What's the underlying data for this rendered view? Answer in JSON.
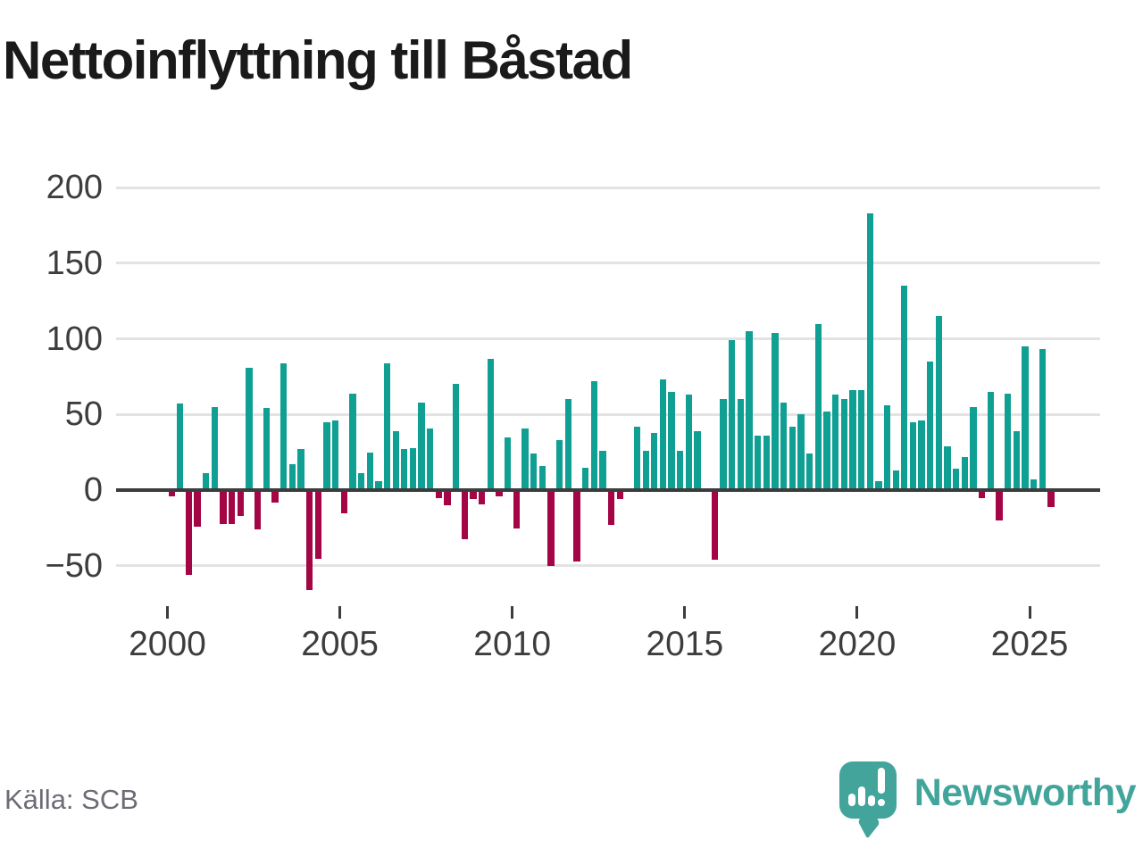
{
  "title": "Nettoinflyttning till Båstad",
  "source": "Källa: SCB",
  "logo": {
    "brand": "Newsworthy"
  },
  "colors": {
    "positive": "#10A093",
    "negative": "#A30545",
    "axis": "#3C3C3C",
    "grid": "#E3E3E3",
    "tick_label": "#3D3D3D",
    "source_text": "#6C6C76",
    "logo_teal": "#43A49C",
    "title_text": "#1A1A1A"
  },
  "chart_data": {
    "type": "bar",
    "title": "Nettoinflyttning till Båstad",
    "xlabel": "",
    "ylabel": "",
    "frequency": "quarterly",
    "start_period": "2000 Q1",
    "end_period": "2025 Q3",
    "values": [
      -3,
      57,
      -55,
      -23,
      11,
      55,
      -21,
      -21,
      -16,
      81,
      -25,
      54,
      -7,
      84,
      17,
      27,
      -65,
      -44,
      45,
      46,
      -14,
      64,
      11,
      25,
      6,
      84,
      39,
      27,
      28,
      58,
      41,
      -4,
      -9,
      70,
      -31,
      -5,
      -8,
      87,
      -3,
      35,
      -24,
      41,
      24,
      16,
      -49,
      33,
      60,
      -46,
      15,
      72,
      26,
      -22,
      -5,
      0,
      42,
      26,
      38,
      73,
      65,
      26,
      63,
      39,
      0,
      -45,
      60,
      99,
      60,
      105,
      36,
      36,
      104,
      58,
      42,
      50,
      24,
      110,
      52,
      63,
      60,
      66,
      66,
      183,
      6,
      56,
      13,
      135,
      45,
      46,
      85,
      115,
      29,
      14,
      22,
      55,
      -4,
      65,
      -19,
      64,
      39,
      95,
      7,
      93,
      -10
    ],
    "yticks": [
      200,
      150,
      100,
      50,
      0,
      -50
    ],
    "xticks": [
      "2000",
      "2005",
      "2010",
      "2015",
      "2020",
      "2025"
    ],
    "ylim": [
      -77,
      215
    ],
    "grid": true,
    "legend": "none",
    "positive_color": "#10A093",
    "negative_color": "#A30545"
  }
}
